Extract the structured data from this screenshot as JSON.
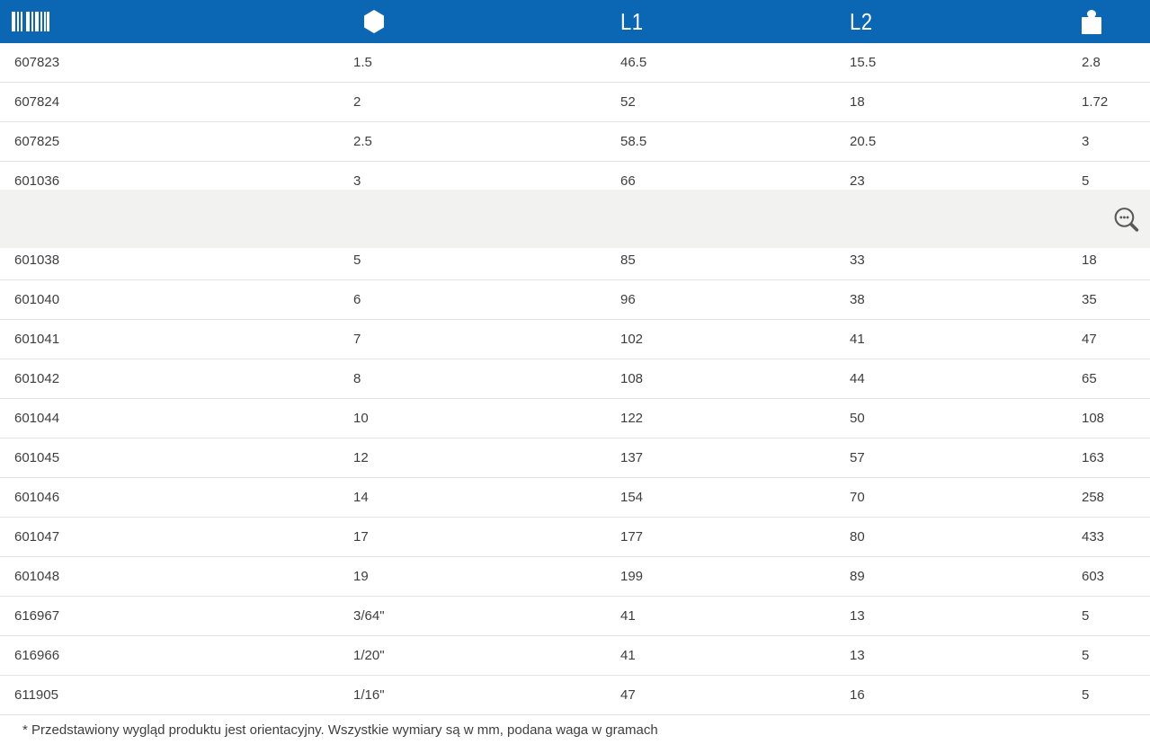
{
  "header": {
    "code_icon": "barcode-icon",
    "size_icon": "hexagon-icon",
    "l1_label": "L1",
    "l2_label": "L2",
    "weight_icon": "weight-icon"
  },
  "table": {
    "rows": [
      {
        "code": "607823",
        "size": "1.5",
        "l1": "46.5",
        "l2": "15.5",
        "weight": "2.8"
      },
      {
        "code": "607824",
        "size": "2",
        "l1": "52",
        "l2": "18",
        "weight": "1.72"
      },
      {
        "code": "607825",
        "size": "2.5",
        "l1": "58.5",
        "l2": "20.5",
        "weight": "3"
      },
      {
        "code": "601036",
        "size": "3",
        "l1": "66",
        "l2": "23",
        "weight": "5"
      },
      {
        "code": "",
        "size": "",
        "l1": "",
        "l2": "",
        "weight": ""
      },
      {
        "code": "601038",
        "size": "5",
        "l1": "85",
        "l2": "33",
        "weight": "18"
      },
      {
        "code": "601040",
        "size": "6",
        "l1": "96",
        "l2": "38",
        "weight": "35"
      },
      {
        "code": "601041",
        "size": "7",
        "l1": "102",
        "l2": "41",
        "weight": "47"
      },
      {
        "code": "601042",
        "size": "8",
        "l1": "108",
        "l2": "44",
        "weight": "65"
      },
      {
        "code": "601044",
        "size": "10",
        "l1": "122",
        "l2": "50",
        "weight": "108"
      },
      {
        "code": "601045",
        "size": "12",
        "l1": "137",
        "l2": "57",
        "weight": "163"
      },
      {
        "code": "601046",
        "size": "14",
        "l1": "154",
        "l2": "70",
        "weight": "258"
      },
      {
        "code": "601047",
        "size": "17",
        "l1": "177",
        "l2": "80",
        "weight": "433"
      },
      {
        "code": "601048",
        "size": "19",
        "l1": "199",
        "l2": "89",
        "weight": "603"
      },
      {
        "code": "616967",
        "size": "3/64\"",
        "l1": "41",
        "l2": "13",
        "weight": "5"
      },
      {
        "code": "616966",
        "size": "1/20\"",
        "l1": "41",
        "l2": "13",
        "weight": "5"
      },
      {
        "code": "611905",
        "size": "1/16\"",
        "l1": "47",
        "l2": "16",
        "weight": "5"
      }
    ]
  },
  "overlay": {
    "icon": "magnifier-dots-icon"
  },
  "footnote": "* Przedstawiony wygląd produktu jest orientacyjny. Wszystkie wymiary są w mm, podana waga w gramach",
  "colors": {
    "header_bg": "#0b67b3",
    "overlay_bg": "#f2f2f1",
    "row_text": "#3e3e3e",
    "divider": "#e3e3e3",
    "icon_gray": "#59595b"
  }
}
